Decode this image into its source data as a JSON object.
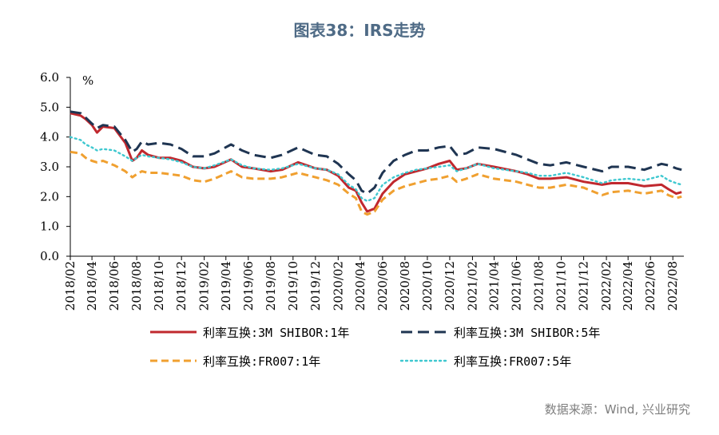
{
  "title": "图表38：IRS走势",
  "source": "数据来源：Wind, 兴业研究",
  "chart_data": {
    "type": "line",
    "ylabel": "%",
    "ylim": [
      0,
      6
    ],
    "yticks": [
      "0.0",
      "1.0",
      "2.0",
      "3.0",
      "4.0",
      "5.0",
      "6.0"
    ],
    "xticks": [
      "2018/02",
      "2018/04",
      "2018/06",
      "2018/08",
      "2018/10",
      "2018/12",
      "2019/02",
      "2019/04",
      "2019/06",
      "2019/08",
      "2019/10",
      "2019/12",
      "2020/02",
      "2020/04",
      "2020/06",
      "2020/08",
      "2020/10",
      "2020/12",
      "2021/02",
      "2021/04",
      "2021/06",
      "2021/08",
      "2021/10",
      "2021/12",
      "2022/02",
      "2022/04",
      "2022/06",
      "2022/08"
    ],
    "grid": false,
    "legend_position": "bottom",
    "series": [
      {
        "name": "利率互换:3M SHIBOR:1年",
        "color": "#c0282e",
        "dash": "solid",
        "values": [
          {
            "x": "2018-02-01",
            "y": 4.8
          },
          {
            "x": "2018-03-01",
            "y": 4.72
          },
          {
            "x": "2018-03-15",
            "y": 4.6
          },
          {
            "x": "2018-04-01",
            "y": 4.4
          },
          {
            "x": "2018-04-15",
            "y": 4.15
          },
          {
            "x": "2018-05-01",
            "y": 4.35
          },
          {
            "x": "2018-06-01",
            "y": 4.3
          },
          {
            "x": "2018-07-01",
            "y": 3.8
          },
          {
            "x": "2018-07-20",
            "y": 3.2
          },
          {
            "x": "2018-08-01",
            "y": 3.3
          },
          {
            "x": "2018-08-15",
            "y": 3.55
          },
          {
            "x": "2018-09-01",
            "y": 3.4
          },
          {
            "x": "2018-10-01",
            "y": 3.3
          },
          {
            "x": "2018-11-01",
            "y": 3.3
          },
          {
            "x": "2018-12-01",
            "y": 3.2
          },
          {
            "x": "2019-01-01",
            "y": 3.0
          },
          {
            "x": "2019-02-01",
            "y": 2.95
          },
          {
            "x": "2019-03-01",
            "y": 3.0
          },
          {
            "x": "2019-04-15",
            "y": 3.25
          },
          {
            "x": "2019-05-15",
            "y": 3.0
          },
          {
            "x": "2019-06-15",
            "y": 2.95
          },
          {
            "x": "2019-08-01",
            "y": 2.85
          },
          {
            "x": "2019-09-01",
            "y": 2.9
          },
          {
            "x": "2019-10-15",
            "y": 3.15
          },
          {
            "x": "2019-12-01",
            "y": 2.95
          },
          {
            "x": "2020-01-01",
            "y": 2.9
          },
          {
            "x": "2020-02-01",
            "y": 2.7
          },
          {
            "x": "2020-03-01",
            "y": 2.3
          },
          {
            "x": "2020-03-20",
            "y": 2.2
          },
          {
            "x": "2020-04-05",
            "y": 1.8
          },
          {
            "x": "2020-04-20",
            "y": 1.5
          },
          {
            "x": "2020-05-10",
            "y": 1.6
          },
          {
            "x": "2020-06-01",
            "y": 2.1
          },
          {
            "x": "2020-07-01",
            "y": 2.5
          },
          {
            "x": "2020-08-01",
            "y": 2.75
          },
          {
            "x": "2020-09-01",
            "y": 2.85
          },
          {
            "x": "2020-10-01",
            "y": 2.95
          },
          {
            "x": "2020-11-01",
            "y": 3.1
          },
          {
            "x": "2020-12-01",
            "y": 3.2
          },
          {
            "x": "2020-12-20",
            "y": 2.9
          },
          {
            "x": "2021-01-15",
            "y": 2.95
          },
          {
            "x": "2021-02-15",
            "y": 3.1
          },
          {
            "x": "2021-04-01",
            "y": 3.0
          },
          {
            "x": "2021-06-01",
            "y": 2.85
          },
          {
            "x": "2021-07-01",
            "y": 2.75
          },
          {
            "x": "2021-08-01",
            "y": 2.6
          },
          {
            "x": "2021-09-01",
            "y": 2.6
          },
          {
            "x": "2021-10-15",
            "y": 2.65
          },
          {
            "x": "2021-12-01",
            "y": 2.5
          },
          {
            "x": "2022-01-20",
            "y": 2.4
          },
          {
            "x": "2022-02-15",
            "y": 2.45
          },
          {
            "x": "2022-04-01",
            "y": 2.45
          },
          {
            "x": "2022-05-15",
            "y": 2.35
          },
          {
            "x": "2022-07-01",
            "y": 2.4
          },
          {
            "x": "2022-07-20",
            "y": 2.25
          },
          {
            "x": "2022-08-10",
            "y": 2.1
          },
          {
            "x": "2022-08-25",
            "y": 2.15
          }
        ]
      },
      {
        "name": "利率互换:3M SHIBOR:5年",
        "color": "#1f3552",
        "dash": "longdash",
        "values": [
          {
            "x": "2018-02-01",
            "y": 4.85
          },
          {
            "x": "2018-03-01",
            "y": 4.8
          },
          {
            "x": "2018-03-15",
            "y": 4.65
          },
          {
            "x": "2018-04-01",
            "y": 4.45
          },
          {
            "x": "2018-04-15",
            "y": 4.3
          },
          {
            "x": "2018-05-01",
            "y": 4.4
          },
          {
            "x": "2018-06-01",
            "y": 4.35
          },
          {
            "x": "2018-07-01",
            "y": 3.9
          },
          {
            "x": "2018-07-20",
            "y": 3.5
          },
          {
            "x": "2018-08-01",
            "y": 3.6
          },
          {
            "x": "2018-08-15",
            "y": 3.85
          },
          {
            "x": "2018-09-01",
            "y": 3.75
          },
          {
            "x": "2018-10-01",
            "y": 3.8
          },
          {
            "x": "2018-11-01",
            "y": 3.75
          },
          {
            "x": "2018-12-01",
            "y": 3.6
          },
          {
            "x": "2019-01-01",
            "y": 3.35
          },
          {
            "x": "2019-02-01",
            "y": 3.35
          },
          {
            "x": "2019-03-01",
            "y": 3.45
          },
          {
            "x": "2019-04-15",
            "y": 3.75
          },
          {
            "x": "2019-05-15",
            "y": 3.55
          },
          {
            "x": "2019-06-15",
            "y": 3.4
          },
          {
            "x": "2019-08-01",
            "y": 3.3
          },
          {
            "x": "2019-09-01",
            "y": 3.4
          },
          {
            "x": "2019-10-15",
            "y": 3.65
          },
          {
            "x": "2019-12-01",
            "y": 3.4
          },
          {
            "x": "2020-01-01",
            "y": 3.35
          },
          {
            "x": "2020-02-01",
            "y": 3.1
          },
          {
            "x": "2020-03-01",
            "y": 2.75
          },
          {
            "x": "2020-03-20",
            "y": 2.55
          },
          {
            "x": "2020-04-05",
            "y": 2.2
          },
          {
            "x": "2020-04-20",
            "y": 2.1
          },
          {
            "x": "2020-05-10",
            "y": 2.3
          },
          {
            "x": "2020-06-01",
            "y": 2.8
          },
          {
            "x": "2020-07-01",
            "y": 3.2
          },
          {
            "x": "2020-08-01",
            "y": 3.4
          },
          {
            "x": "2020-09-01",
            "y": 3.55
          },
          {
            "x": "2020-10-01",
            "y": 3.55
          },
          {
            "x": "2020-11-01",
            "y": 3.65
          },
          {
            "x": "2020-12-01",
            "y": 3.7
          },
          {
            "x": "2020-12-20",
            "y": 3.4
          },
          {
            "x": "2021-01-15",
            "y": 3.45
          },
          {
            "x": "2021-02-15",
            "y": 3.65
          },
          {
            "x": "2021-04-01",
            "y": 3.6
          },
          {
            "x": "2021-06-01",
            "y": 3.4
          },
          {
            "x": "2021-07-01",
            "y": 3.25
          },
          {
            "x": "2021-08-01",
            "y": 3.1
          },
          {
            "x": "2021-09-01",
            "y": 3.05
          },
          {
            "x": "2021-10-15",
            "y": 3.15
          },
          {
            "x": "2021-12-01",
            "y": 3.0
          },
          {
            "x": "2022-01-20",
            "y": 2.85
          },
          {
            "x": "2022-02-15",
            "y": 3.0
          },
          {
            "x": "2022-04-01",
            "y": 3.0
          },
          {
            "x": "2022-05-15",
            "y": 2.9
          },
          {
            "x": "2022-07-01",
            "y": 3.1
          },
          {
            "x": "2022-07-20",
            "y": 3.05
          },
          {
            "x": "2022-08-10",
            "y": 2.95
          },
          {
            "x": "2022-08-25",
            "y": 2.9
          }
        ]
      },
      {
        "name": "利率互换:FR007:1年",
        "color": "#f0a030",
        "dash": "dash",
        "values": [
          {
            "x": "2018-02-01",
            "y": 3.5
          },
          {
            "x": "2018-03-01",
            "y": 3.45
          },
          {
            "x": "2018-03-15",
            "y": 3.3
          },
          {
            "x": "2018-04-01",
            "y": 3.2
          },
          {
            "x": "2018-04-15",
            "y": 3.15
          },
          {
            "x": "2018-05-01",
            "y": 3.2
          },
          {
            "x": "2018-06-01",
            "y": 3.05
          },
          {
            "x": "2018-07-01",
            "y": 2.85
          },
          {
            "x": "2018-07-20",
            "y": 2.65
          },
          {
            "x": "2018-08-01",
            "y": 2.75
          },
          {
            "x": "2018-08-15",
            "y": 2.85
          },
          {
            "x": "2018-09-01",
            "y": 2.8
          },
          {
            "x": "2018-10-01",
            "y": 2.8
          },
          {
            "x": "2018-11-01",
            "y": 2.75
          },
          {
            "x": "2018-12-01",
            "y": 2.7
          },
          {
            "x": "2019-01-01",
            "y": 2.55
          },
          {
            "x": "2019-02-01",
            "y": 2.5
          },
          {
            "x": "2019-03-01",
            "y": 2.6
          },
          {
            "x": "2019-04-15",
            "y": 2.85
          },
          {
            "x": "2019-05-15",
            "y": 2.65
          },
          {
            "x": "2019-06-15",
            "y": 2.6
          },
          {
            "x": "2019-08-01",
            "y": 2.6
          },
          {
            "x": "2019-09-01",
            "y": 2.65
          },
          {
            "x": "2019-10-15",
            "y": 2.8
          },
          {
            "x": "2019-12-01",
            "y": 2.65
          },
          {
            "x": "2020-01-01",
            "y": 2.55
          },
          {
            "x": "2020-02-01",
            "y": 2.4
          },
          {
            "x": "2020-03-01",
            "y": 2.1
          },
          {
            "x": "2020-03-20",
            "y": 1.95
          },
          {
            "x": "2020-04-05",
            "y": 1.5
          },
          {
            "x": "2020-04-20",
            "y": 1.4
          },
          {
            "x": "2020-05-10",
            "y": 1.5
          },
          {
            "x": "2020-06-01",
            "y": 1.9
          },
          {
            "x": "2020-07-01",
            "y": 2.2
          },
          {
            "x": "2020-08-01",
            "y": 2.35
          },
          {
            "x": "2020-09-01",
            "y": 2.45
          },
          {
            "x": "2020-10-01",
            "y": 2.55
          },
          {
            "x": "2020-11-01",
            "y": 2.6
          },
          {
            "x": "2020-12-01",
            "y": 2.7
          },
          {
            "x": "2020-12-20",
            "y": 2.5
          },
          {
            "x": "2021-01-15",
            "y": 2.6
          },
          {
            "x": "2021-02-15",
            "y": 2.75
          },
          {
            "x": "2021-04-01",
            "y": 2.6
          },
          {
            "x": "2021-06-01",
            "y": 2.5
          },
          {
            "x": "2021-07-01",
            "y": 2.4
          },
          {
            "x": "2021-08-01",
            "y": 2.3
          },
          {
            "x": "2021-09-01",
            "y": 2.3
          },
          {
            "x": "2021-10-15",
            "y": 2.4
          },
          {
            "x": "2021-12-01",
            "y": 2.3
          },
          {
            "x": "2022-01-20",
            "y": 2.05
          },
          {
            "x": "2022-02-15",
            "y": 2.15
          },
          {
            "x": "2022-04-01",
            "y": 2.2
          },
          {
            "x": "2022-05-15",
            "y": 2.1
          },
          {
            "x": "2022-07-01",
            "y": 2.2
          },
          {
            "x": "2022-07-20",
            "y": 2.05
          },
          {
            "x": "2022-08-10",
            "y": 1.95
          },
          {
            "x": "2022-08-25",
            "y": 2.0
          }
        ]
      },
      {
        "name": "利率互换:FR007:5年",
        "color": "#3fc8d0",
        "dash": "dot",
        "values": [
          {
            "x": "2018-02-01",
            "y": 4.0
          },
          {
            "x": "2018-03-01",
            "y": 3.9
          },
          {
            "x": "2018-03-15",
            "y": 3.75
          },
          {
            "x": "2018-04-01",
            "y": 3.65
          },
          {
            "x": "2018-04-15",
            "y": 3.55
          },
          {
            "x": "2018-05-01",
            "y": 3.6
          },
          {
            "x": "2018-06-01",
            "y": 3.55
          },
          {
            "x": "2018-07-01",
            "y": 3.35
          },
          {
            "x": "2018-07-20",
            "y": 3.2
          },
          {
            "x": "2018-08-01",
            "y": 3.3
          },
          {
            "x": "2018-08-15",
            "y": 3.4
          },
          {
            "x": "2018-09-01",
            "y": 3.35
          },
          {
            "x": "2018-10-01",
            "y": 3.3
          },
          {
            "x": "2018-11-01",
            "y": 3.25
          },
          {
            "x": "2018-12-01",
            "y": 3.15
          },
          {
            "x": "2019-01-01",
            "y": 3.0
          },
          {
            "x": "2019-02-01",
            "y": 2.95
          },
          {
            "x": "2019-03-01",
            "y": 3.05
          },
          {
            "x": "2019-04-15",
            "y": 3.25
          },
          {
            "x": "2019-05-15",
            "y": 3.05
          },
          {
            "x": "2019-06-15",
            "y": 2.95
          },
          {
            "x": "2019-08-01",
            "y": 2.9
          },
          {
            "x": "2019-09-01",
            "y": 2.95
          },
          {
            "x": "2019-10-15",
            "y": 3.1
          },
          {
            "x": "2019-12-01",
            "y": 2.95
          },
          {
            "x": "2020-01-01",
            "y": 2.9
          },
          {
            "x": "2020-02-01",
            "y": 2.75
          },
          {
            "x": "2020-03-01",
            "y": 2.4
          },
          {
            "x": "2020-03-20",
            "y": 2.25
          },
          {
            "x": "2020-04-05",
            "y": 1.95
          },
          {
            "x": "2020-04-20",
            "y": 1.85
          },
          {
            "x": "2020-05-10",
            "y": 1.95
          },
          {
            "x": "2020-06-01",
            "y": 2.4
          },
          {
            "x": "2020-07-01",
            "y": 2.65
          },
          {
            "x": "2020-08-01",
            "y": 2.8
          },
          {
            "x": "2020-09-01",
            "y": 2.9
          },
          {
            "x": "2020-10-01",
            "y": 2.95
          },
          {
            "x": "2020-11-01",
            "y": 3.0
          },
          {
            "x": "2020-12-01",
            "y": 3.05
          },
          {
            "x": "2020-12-20",
            "y": 2.85
          },
          {
            "x": "2021-01-15",
            "y": 2.95
          },
          {
            "x": "2021-02-15",
            "y": 3.1
          },
          {
            "x": "2021-04-01",
            "y": 2.95
          },
          {
            "x": "2021-06-01",
            "y": 2.85
          },
          {
            "x": "2021-07-01",
            "y": 2.8
          },
          {
            "x": "2021-08-01",
            "y": 2.7
          },
          {
            "x": "2021-09-01",
            "y": 2.7
          },
          {
            "x": "2021-10-15",
            "y": 2.8
          },
          {
            "x": "2021-12-01",
            "y": 2.65
          },
          {
            "x": "2022-01-20",
            "y": 2.45
          },
          {
            "x": "2022-02-15",
            "y": 2.55
          },
          {
            "x": "2022-04-01",
            "y": 2.6
          },
          {
            "x": "2022-05-15",
            "y": 2.55
          },
          {
            "x": "2022-07-01",
            "y": 2.7
          },
          {
            "x": "2022-07-20",
            "y": 2.55
          },
          {
            "x": "2022-08-10",
            "y": 2.45
          },
          {
            "x": "2022-08-25",
            "y": 2.4
          }
        ]
      }
    ]
  }
}
